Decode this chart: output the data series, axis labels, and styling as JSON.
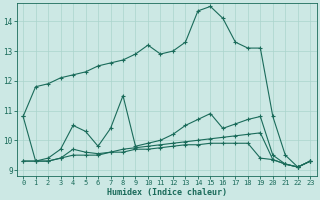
{
  "xlabel": "Humidex (Indice chaleur)",
  "bg_color": "#cce8e4",
  "line_color": "#1a6b5a",
  "grid_color": "#aad4cc",
  "xlim": [
    -0.5,
    23.5
  ],
  "ylim": [
    8.8,
    14.6
  ],
  "xticks": [
    0,
    1,
    2,
    3,
    4,
    5,
    6,
    7,
    8,
    9,
    10,
    11,
    12,
    13,
    14,
    15,
    16,
    17,
    18,
    19,
    20,
    21,
    22,
    23
  ],
  "yticks": [
    9,
    10,
    11,
    12,
    13,
    14
  ],
  "curves": [
    {
      "x": [
        0,
        1,
        2,
        3,
        4,
        5,
        6,
        7,
        8,
        9,
        10,
        11,
        12,
        13,
        14,
        15,
        16,
        17,
        18,
        19,
        20,
        21,
        22,
        23
      ],
      "y": [
        10.8,
        11.8,
        11.9,
        12.1,
        12.2,
        12.3,
        12.5,
        12.6,
        12.7,
        12.9,
        13.2,
        12.9,
        13.0,
        13.3,
        14.35,
        14.5,
        14.1,
        13.3,
        13.1,
        13.1,
        10.8,
        9.5,
        9.1,
        9.3
      ]
    },
    {
      "x": [
        0,
        1,
        2,
        3,
        4,
        5,
        6,
        7,
        8,
        9,
        10,
        11,
        12,
        13,
        14,
        15,
        16,
        17,
        18,
        19,
        20,
        21,
        22,
        23
      ],
      "y": [
        10.8,
        9.3,
        9.4,
        9.7,
        10.5,
        10.3,
        9.8,
        10.4,
        11.5,
        9.8,
        9.9,
        10.0,
        10.2,
        10.5,
        10.7,
        10.9,
        10.4,
        10.55,
        10.7,
        10.8,
        9.5,
        9.2,
        9.1,
        9.3
      ]
    },
    {
      "x": [
        0,
        1,
        2,
        3,
        4,
        5,
        6,
        7,
        8,
        9,
        10,
        11,
        12,
        13,
        14,
        15,
        16,
        17,
        18,
        19,
        20,
        21,
        22,
        23
      ],
      "y": [
        9.3,
        9.3,
        9.3,
        9.4,
        9.5,
        9.5,
        9.5,
        9.6,
        9.6,
        9.7,
        9.7,
        9.75,
        9.8,
        9.85,
        9.85,
        9.9,
        9.9,
        9.9,
        9.9,
        9.4,
        9.35,
        9.2,
        9.1,
        9.3
      ]
    },
    {
      "x": [
        0,
        1,
        2,
        3,
        4,
        5,
        6,
        7,
        8,
        9,
        10,
        11,
        12,
        13,
        14,
        15,
        16,
        17,
        18,
        19,
        20,
        21,
        22,
        23
      ],
      "y": [
        9.3,
        9.3,
        9.3,
        9.4,
        9.7,
        9.6,
        9.55,
        9.6,
        9.7,
        9.75,
        9.8,
        9.85,
        9.9,
        9.95,
        10.0,
        10.05,
        10.1,
        10.15,
        10.2,
        10.25,
        9.35,
        9.2,
        9.1,
        9.3
      ]
    }
  ]
}
